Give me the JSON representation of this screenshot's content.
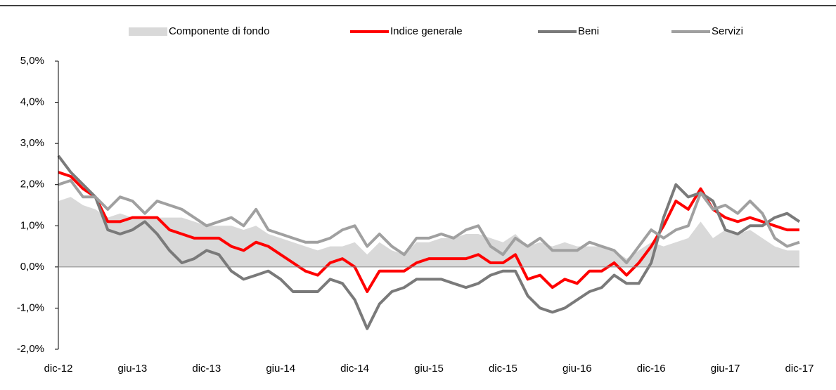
{
  "chart_data": {
    "type": "line",
    "categories": [
      "dic-12",
      null,
      null,
      null,
      null,
      null,
      "giu-13",
      null,
      null,
      null,
      null,
      null,
      "dic-13",
      null,
      null,
      null,
      null,
      null,
      "giu-14",
      null,
      null,
      null,
      null,
      null,
      "dic-14",
      null,
      null,
      null,
      null,
      null,
      "giu-15",
      null,
      null,
      null,
      null,
      null,
      "dic-15",
      null,
      null,
      null,
      null,
      null,
      "giu-16",
      null,
      null,
      null,
      null,
      null,
      "dic-16",
      null,
      null,
      null,
      null,
      null,
      "giu-17",
      null,
      null,
      null,
      null,
      null,
      "dic-17"
    ],
    "series": [
      {
        "name": "Componente di fondo",
        "type": "area",
        "color": "#d9d9d9",
        "values": [
          1.6,
          1.7,
          1.5,
          1.4,
          1.2,
          1.3,
          1.2,
          1.2,
          1.2,
          1.2,
          1.2,
          1.1,
          1.0,
          1.0,
          1.0,
          0.9,
          1.0,
          0.8,
          0.7,
          0.6,
          0.5,
          0.4,
          0.5,
          0.5,
          0.6,
          0.3,
          0.6,
          0.4,
          0.3,
          0.6,
          0.6,
          0.7,
          0.7,
          0.8,
          0.8,
          0.7,
          0.6,
          0.8,
          0.5,
          0.6,
          0.5,
          0.6,
          0.5,
          0.5,
          0.5,
          0.4,
          0.2,
          0.4,
          0.6,
          0.5,
          0.6,
          0.7,
          1.1,
          0.7,
          0.9,
          0.8,
          0.9,
          0.7,
          0.5,
          0.4,
          0.4
        ]
      },
      {
        "name": "Indice generale",
        "type": "line",
        "color": "#ff0000",
        "values": [
          2.3,
          2.2,
          1.9,
          1.7,
          1.1,
          1.1,
          1.2,
          1.2,
          1.2,
          0.9,
          0.8,
          0.7,
          0.7,
          0.7,
          0.5,
          0.4,
          0.6,
          0.5,
          0.3,
          0.1,
          -0.1,
          -0.2,
          0.1,
          0.2,
          0.0,
          -0.6,
          -0.1,
          -0.1,
          -0.1,
          0.1,
          0.2,
          0.2,
          0.2,
          0.2,
          0.3,
          0.1,
          0.1,
          0.3,
          -0.3,
          -0.2,
          -0.5,
          -0.3,
          -0.4,
          -0.1,
          -0.1,
          0.1,
          -0.2,
          0.1,
          0.5,
          1.0,
          1.6,
          1.4,
          1.9,
          1.4,
          1.2,
          1.1,
          1.2,
          1.1,
          1.0,
          0.9,
          0.9
        ]
      },
      {
        "name": "Beni",
        "type": "line",
        "color": "#7a7a7a",
        "values": [
          2.7,
          2.3,
          2.0,
          1.7,
          0.9,
          0.8,
          0.9,
          1.1,
          0.8,
          0.4,
          0.1,
          0.2,
          0.4,
          0.3,
          -0.1,
          -0.3,
          -0.2,
          -0.1,
          -0.3,
          -0.6,
          -0.6,
          -0.6,
          -0.3,
          -0.4,
          -0.8,
          -1.5,
          -0.9,
          -0.6,
          -0.5,
          -0.3,
          -0.3,
          -0.3,
          -0.4,
          -0.5,
          -0.4,
          -0.2,
          -0.1,
          -0.1,
          -0.7,
          -1.0,
          -1.1,
          -1.0,
          -0.8,
          -0.6,
          -0.5,
          -0.2,
          -0.4,
          -0.4,
          0.1,
          1.2,
          2.0,
          1.7,
          1.8,
          1.6,
          0.9,
          0.8,
          1.0,
          1.0,
          1.2,
          1.3,
          1.1
        ]
      },
      {
        "name": "Servizi",
        "type": "line",
        "color": "#a0a0a0",
        "values": [
          2.0,
          2.1,
          1.7,
          1.7,
          1.4,
          1.7,
          1.6,
          1.3,
          1.6,
          1.5,
          1.4,
          1.2,
          1.0,
          1.1,
          1.2,
          1.0,
          1.4,
          0.9,
          0.8,
          0.7,
          0.6,
          0.6,
          0.7,
          0.9,
          1.0,
          0.5,
          0.8,
          0.5,
          0.3,
          0.7,
          0.7,
          0.8,
          0.7,
          0.9,
          1.0,
          0.5,
          0.3,
          0.7,
          0.5,
          0.7,
          0.4,
          0.4,
          0.4,
          0.6,
          0.5,
          0.4,
          0.1,
          0.5,
          0.9,
          0.7,
          0.9,
          1.0,
          1.8,
          1.4,
          1.5,
          1.3,
          1.6,
          1.3,
          0.7,
          0.5,
          0.6
        ]
      }
    ],
    "ylim": [
      -2,
      5
    ],
    "yticks": [
      {
        "value": -2,
        "label": "-2,0%"
      },
      {
        "value": -1,
        "label": "-1,0%"
      },
      {
        "value": 0,
        "label": "0,0%"
      },
      {
        "value": 1,
        "label": "1,0%"
      },
      {
        "value": 2,
        "label": "2,0%"
      },
      {
        "value": 3,
        "label": "3,0%"
      },
      {
        "value": 4,
        "label": "4,0%"
      },
      {
        "value": 5,
        "label": "5,0%"
      }
    ],
    "legend": "top",
    "grid": false
  }
}
